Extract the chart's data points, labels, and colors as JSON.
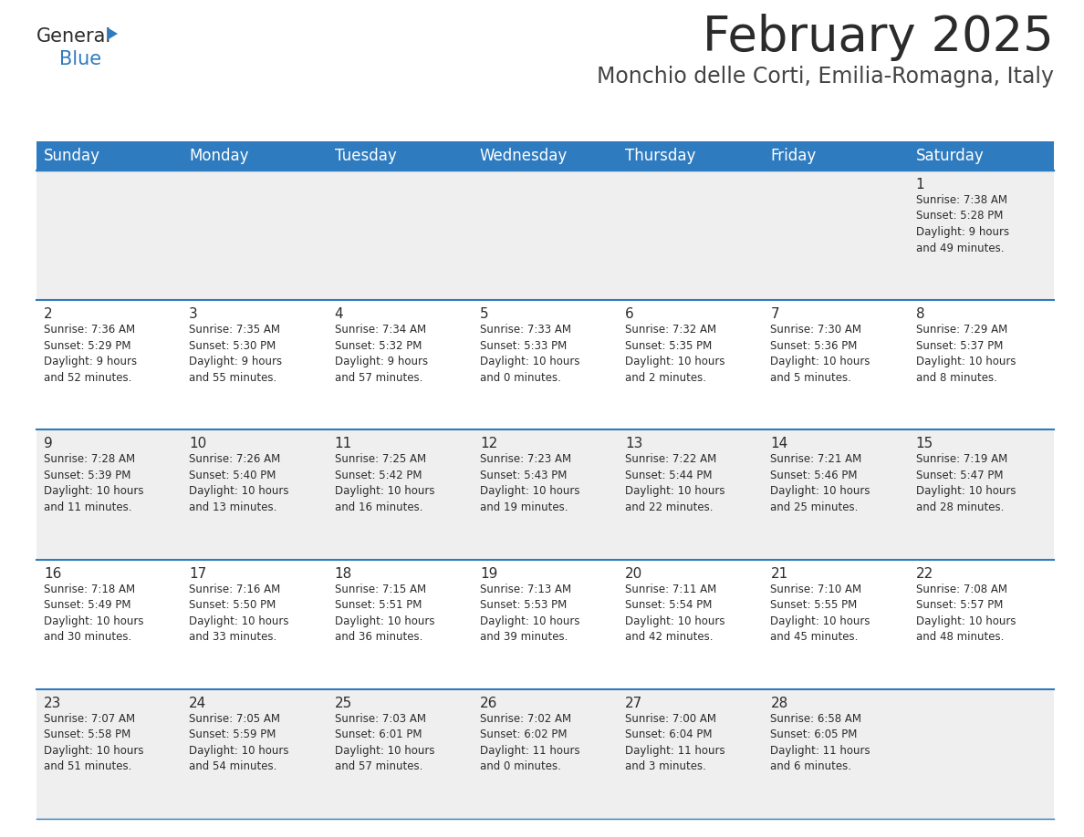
{
  "title": "February 2025",
  "subtitle": "Monchio delle Corti, Emilia-Romagna, Italy",
  "header_bg": "#2e7bbf",
  "header_text_color": "#ffffff",
  "cell_bg_week1": "#efefef",
  "cell_bg_week2": "#ffffff",
  "cell_bg_week3": "#efefef",
  "cell_bg_week4": "#ffffff",
  "cell_bg_week5": "#efefef",
  "border_color": "#2e7bbf",
  "day_names": [
    "Sunday",
    "Monday",
    "Tuesday",
    "Wednesday",
    "Thursday",
    "Friday",
    "Saturday"
  ],
  "weeks": [
    [
      {
        "day": "",
        "info": ""
      },
      {
        "day": "",
        "info": ""
      },
      {
        "day": "",
        "info": ""
      },
      {
        "day": "",
        "info": ""
      },
      {
        "day": "",
        "info": ""
      },
      {
        "day": "",
        "info": ""
      },
      {
        "day": "1",
        "info": "Sunrise: 7:38 AM\nSunset: 5:28 PM\nDaylight: 9 hours\nand 49 minutes."
      }
    ],
    [
      {
        "day": "2",
        "info": "Sunrise: 7:36 AM\nSunset: 5:29 PM\nDaylight: 9 hours\nand 52 minutes."
      },
      {
        "day": "3",
        "info": "Sunrise: 7:35 AM\nSunset: 5:30 PM\nDaylight: 9 hours\nand 55 minutes."
      },
      {
        "day": "4",
        "info": "Sunrise: 7:34 AM\nSunset: 5:32 PM\nDaylight: 9 hours\nand 57 minutes."
      },
      {
        "day": "5",
        "info": "Sunrise: 7:33 AM\nSunset: 5:33 PM\nDaylight: 10 hours\nand 0 minutes."
      },
      {
        "day": "6",
        "info": "Sunrise: 7:32 AM\nSunset: 5:35 PM\nDaylight: 10 hours\nand 2 minutes."
      },
      {
        "day": "7",
        "info": "Sunrise: 7:30 AM\nSunset: 5:36 PM\nDaylight: 10 hours\nand 5 minutes."
      },
      {
        "day": "8",
        "info": "Sunrise: 7:29 AM\nSunset: 5:37 PM\nDaylight: 10 hours\nand 8 minutes."
      }
    ],
    [
      {
        "day": "9",
        "info": "Sunrise: 7:28 AM\nSunset: 5:39 PM\nDaylight: 10 hours\nand 11 minutes."
      },
      {
        "day": "10",
        "info": "Sunrise: 7:26 AM\nSunset: 5:40 PM\nDaylight: 10 hours\nand 13 minutes."
      },
      {
        "day": "11",
        "info": "Sunrise: 7:25 AM\nSunset: 5:42 PM\nDaylight: 10 hours\nand 16 minutes."
      },
      {
        "day": "12",
        "info": "Sunrise: 7:23 AM\nSunset: 5:43 PM\nDaylight: 10 hours\nand 19 minutes."
      },
      {
        "day": "13",
        "info": "Sunrise: 7:22 AM\nSunset: 5:44 PM\nDaylight: 10 hours\nand 22 minutes."
      },
      {
        "day": "14",
        "info": "Sunrise: 7:21 AM\nSunset: 5:46 PM\nDaylight: 10 hours\nand 25 minutes."
      },
      {
        "day": "15",
        "info": "Sunrise: 7:19 AM\nSunset: 5:47 PM\nDaylight: 10 hours\nand 28 minutes."
      }
    ],
    [
      {
        "day": "16",
        "info": "Sunrise: 7:18 AM\nSunset: 5:49 PM\nDaylight: 10 hours\nand 30 minutes."
      },
      {
        "day": "17",
        "info": "Sunrise: 7:16 AM\nSunset: 5:50 PM\nDaylight: 10 hours\nand 33 minutes."
      },
      {
        "day": "18",
        "info": "Sunrise: 7:15 AM\nSunset: 5:51 PM\nDaylight: 10 hours\nand 36 minutes."
      },
      {
        "day": "19",
        "info": "Sunrise: 7:13 AM\nSunset: 5:53 PM\nDaylight: 10 hours\nand 39 minutes."
      },
      {
        "day": "20",
        "info": "Sunrise: 7:11 AM\nSunset: 5:54 PM\nDaylight: 10 hours\nand 42 minutes."
      },
      {
        "day": "21",
        "info": "Sunrise: 7:10 AM\nSunset: 5:55 PM\nDaylight: 10 hours\nand 45 minutes."
      },
      {
        "day": "22",
        "info": "Sunrise: 7:08 AM\nSunset: 5:57 PM\nDaylight: 10 hours\nand 48 minutes."
      }
    ],
    [
      {
        "day": "23",
        "info": "Sunrise: 7:07 AM\nSunset: 5:58 PM\nDaylight: 10 hours\nand 51 minutes."
      },
      {
        "day": "24",
        "info": "Sunrise: 7:05 AM\nSunset: 5:59 PM\nDaylight: 10 hours\nand 54 minutes."
      },
      {
        "day": "25",
        "info": "Sunrise: 7:03 AM\nSunset: 6:01 PM\nDaylight: 10 hours\nand 57 minutes."
      },
      {
        "day": "26",
        "info": "Sunrise: 7:02 AM\nSunset: 6:02 PM\nDaylight: 11 hours\nand 0 minutes."
      },
      {
        "day": "27",
        "info": "Sunrise: 7:00 AM\nSunset: 6:04 PM\nDaylight: 11 hours\nand 3 minutes."
      },
      {
        "day": "28",
        "info": "Sunrise: 6:58 AM\nSunset: 6:05 PM\nDaylight: 11 hours\nand 6 minutes."
      },
      {
        "day": "",
        "info": ""
      }
    ]
  ],
  "logo_general_color": "#2b2b2b",
  "logo_blue_color": "#2e7bbf",
  "title_color": "#2b2b2b",
  "subtitle_color": "#444444",
  "day_number_color": "#2b2b2b",
  "info_text_color": "#2b2b2b",
  "title_fontsize": 38,
  "subtitle_fontsize": 17,
  "header_fontsize": 12,
  "day_number_fontsize": 11,
  "info_fontsize": 8.5,
  "logo_fontsize": 15
}
